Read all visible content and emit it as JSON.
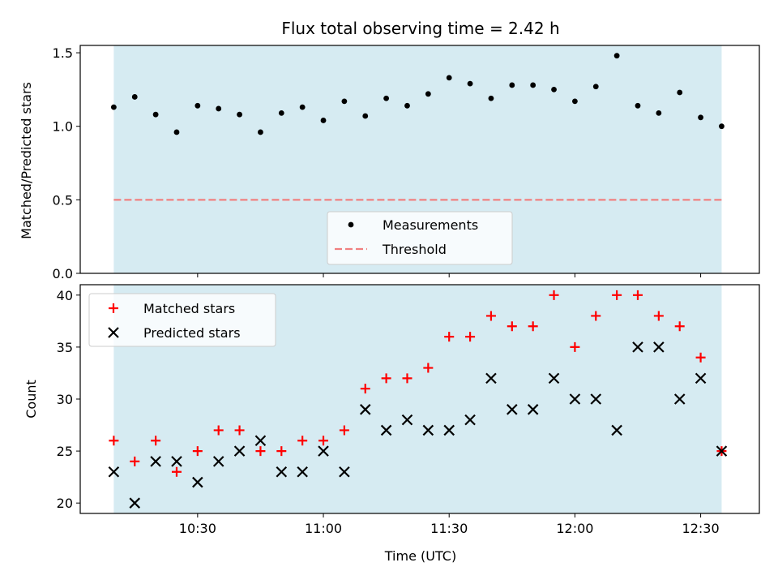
{
  "figure_title": "Flux total observing time = 2.42 h",
  "chart_data": [
    {
      "type": "scatter",
      "ylabel": "Matched/Predicted stars",
      "ylim": [
        0,
        1.55
      ],
      "yticks": [
        0.0,
        0.5,
        1.0,
        1.5
      ],
      "ytick_labels": [
        "0.0",
        "0.5",
        "1.0",
        "1.5"
      ],
      "xlim": [
        "10:02",
        "12:44"
      ],
      "shaded_span": [
        "10:10",
        "12:35"
      ],
      "shade_color": "#add8e6",
      "series": [
        {
          "name": "Measurements",
          "marker": "dot",
          "color": "#000000",
          "x": [
            "10:10",
            "10:15",
            "10:20",
            "10:25",
            "10:30",
            "10:35",
            "10:40",
            "10:45",
            "10:50",
            "10:55",
            "11:00",
            "11:05",
            "11:10",
            "11:15",
            "11:20",
            "11:25",
            "11:30",
            "11:35",
            "11:40",
            "11:45",
            "11:50",
            "11:55",
            "12:00",
            "12:05",
            "12:10",
            "12:15",
            "12:20",
            "12:25",
            "12:30",
            "12:35"
          ],
          "y": [
            1.13,
            1.2,
            1.08,
            0.96,
            1.14,
            1.12,
            1.08,
            0.96,
            1.09,
            1.13,
            1.04,
            1.17,
            1.07,
            1.19,
            1.14,
            1.22,
            1.33,
            1.29,
            1.19,
            1.28,
            1.28,
            1.25,
            1.17,
            1.27,
            1.48,
            1.14,
            1.09,
            1.23,
            1.06,
            1.0
          ]
        },
        {
          "name": "Threshold",
          "style": "dashed",
          "color": "#f08080",
          "x": [
            "10:10",
            "12:35"
          ],
          "y": [
            0.5,
            0.5
          ]
        }
      ],
      "legend": "lower-center"
    },
    {
      "type": "scatter",
      "xlabel": "Time (UTC)",
      "ylabel": "Count",
      "ylim": [
        19,
        41
      ],
      "yticks": [
        20,
        25,
        30,
        35,
        40
      ],
      "ytick_labels": [
        "20",
        "25",
        "30",
        "35",
        "40"
      ],
      "xlim": [
        "10:02",
        "12:44"
      ],
      "xticks": [
        "10:30",
        "11:00",
        "11:30",
        "12:00",
        "12:30"
      ],
      "shaded_span": [
        "10:10",
        "12:35"
      ],
      "shade_color": "#add8e6",
      "series": [
        {
          "name": "Matched stars",
          "marker": "plus",
          "color": "#ff0000",
          "x": [
            "10:10",
            "10:15",
            "10:20",
            "10:25",
            "10:30",
            "10:35",
            "10:40",
            "10:45",
            "10:50",
            "10:55",
            "11:00",
            "11:05",
            "11:10",
            "11:15",
            "11:20",
            "11:25",
            "11:30",
            "11:35",
            "11:40",
            "11:45",
            "11:50",
            "11:55",
            "12:00",
            "12:05",
            "12:10",
            "12:15",
            "12:20",
            "12:25",
            "12:30",
            "12:35"
          ],
          "y": [
            26,
            24,
            26,
            23,
            25,
            27,
            27,
            25,
            25,
            26,
            26,
            27,
            31,
            32,
            32,
            33,
            36,
            36,
            38,
            37,
            37,
            40,
            35,
            38,
            40,
            40,
            38,
            37,
            34,
            25
          ]
        },
        {
          "name": "Predicted stars",
          "marker": "x",
          "color": "#000000",
          "x": [
            "10:10",
            "10:15",
            "10:20",
            "10:25",
            "10:30",
            "10:35",
            "10:40",
            "10:45",
            "10:50",
            "10:55",
            "11:00",
            "11:05",
            "11:10",
            "11:15",
            "11:20",
            "11:25",
            "11:30",
            "11:35",
            "11:40",
            "11:45",
            "11:50",
            "11:55",
            "12:00",
            "12:05",
            "12:10",
            "12:15",
            "12:20",
            "12:25",
            "12:30",
            "12:35"
          ],
          "y": [
            23,
            20,
            24,
            24,
            22,
            24,
            25,
            26,
            23,
            23,
            25,
            23,
            29,
            27,
            28,
            27,
            27,
            28,
            32,
            29,
            29,
            32,
            30,
            30,
            27,
            35,
            35,
            30,
            32,
            25
          ]
        }
      ],
      "legend": "upper-left"
    }
  ]
}
